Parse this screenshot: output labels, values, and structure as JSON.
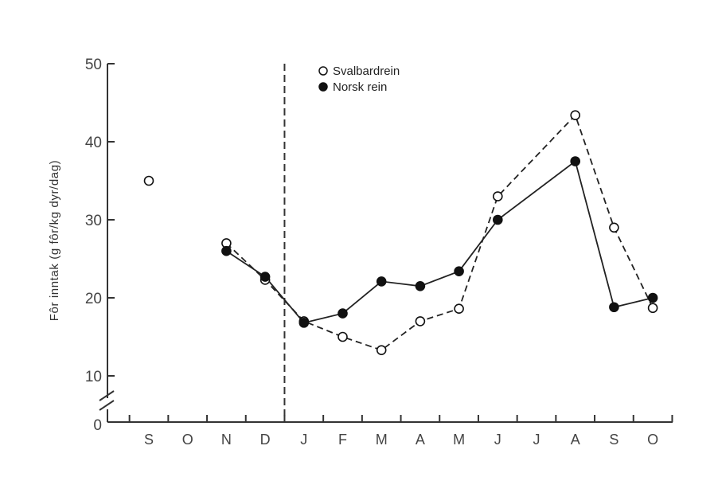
{
  "chart_data": {
    "type": "line",
    "ylabel": "Fôr inntak (g fôr/kg dyr/dag)",
    "xlabel": "",
    "categories": [
      "S",
      "O",
      "N",
      "D",
      "J",
      "F",
      "M",
      "A",
      "M",
      "J",
      "J",
      "A",
      "S",
      "O"
    ],
    "y_ticks": [
      "50",
      "40",
      "30",
      "20",
      "10"
    ],
    "y_zero_label": "0",
    "ylim": [
      10,
      50
    ],
    "axis_break": true,
    "divider_between": [
      "D",
      "J"
    ],
    "grid": false,
    "legend_position": "top-center",
    "series": [
      {
        "name": "Svalbardrein",
        "marker": "open-circle",
        "line_style": "dashed",
        "points": [
          {
            "x": "S",
            "y": 35
          },
          {
            "x": "N",
            "y": 27
          },
          {
            "x": "D",
            "y": 22.3
          },
          {
            "x": "J",
            "y": 17
          },
          {
            "x": "F",
            "y": 15
          },
          {
            "x": "M",
            "y": 13.3
          },
          {
            "x": "A",
            "y": 17
          },
          {
            "x": "M",
            "y": 18.6
          },
          {
            "x": "J",
            "y": 33
          },
          {
            "x": "A",
            "y": 43.4
          },
          {
            "x": "S",
            "y": 29
          },
          {
            "x": "O",
            "y": 18.7
          }
        ]
      },
      {
        "name": "Norsk rein",
        "marker": "filled-circle",
        "line_style": "solid",
        "points": [
          {
            "x": "N",
            "y": 26
          },
          {
            "x": "D",
            "y": 22.7
          },
          {
            "x": "J",
            "y": 16.8
          },
          {
            "x": "F",
            "y": 18
          },
          {
            "x": "M",
            "y": 22.1
          },
          {
            "x": "A",
            "y": 21.5
          },
          {
            "x": "M",
            "y": 23.4
          },
          {
            "x": "J",
            "y": 30
          },
          {
            "x": "A",
            "y": 37.5
          },
          {
            "x": "S",
            "y": 18.8
          },
          {
            "x": "O",
            "y": 20
          }
        ]
      }
    ]
  }
}
